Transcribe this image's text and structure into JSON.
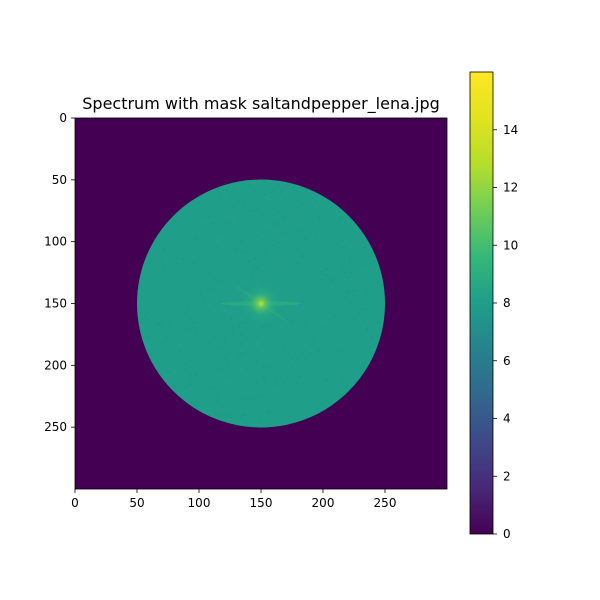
{
  "chart_data": {
    "type": "heatmap",
    "title": "Spectrum with mask saltandpepper_lena.jpg",
    "image_size": [
      300,
      300
    ],
    "xlim": [
      0,
      300
    ],
    "ylim": [
      300,
      0
    ],
    "x_ticks": [
      0,
      50,
      100,
      150,
      200,
      250
    ],
    "y_ticks": [
      0,
      50,
      100,
      150,
      200,
      250
    ],
    "mask": {
      "shape": "circle",
      "center": [
        150,
        150
      ],
      "radius": 100,
      "inside_typical_value": 9.5,
      "outside_value": 0
    },
    "peak": {
      "x": 150,
      "y": 150,
      "value": 15.5
    },
    "colorbar": {
      "colormap": "viridis",
      "range": [
        0,
        16
      ],
      "ticks": [
        0,
        2,
        4,
        6,
        8,
        10,
        12,
        14
      ]
    },
    "xlabel": "",
    "ylabel": ""
  }
}
